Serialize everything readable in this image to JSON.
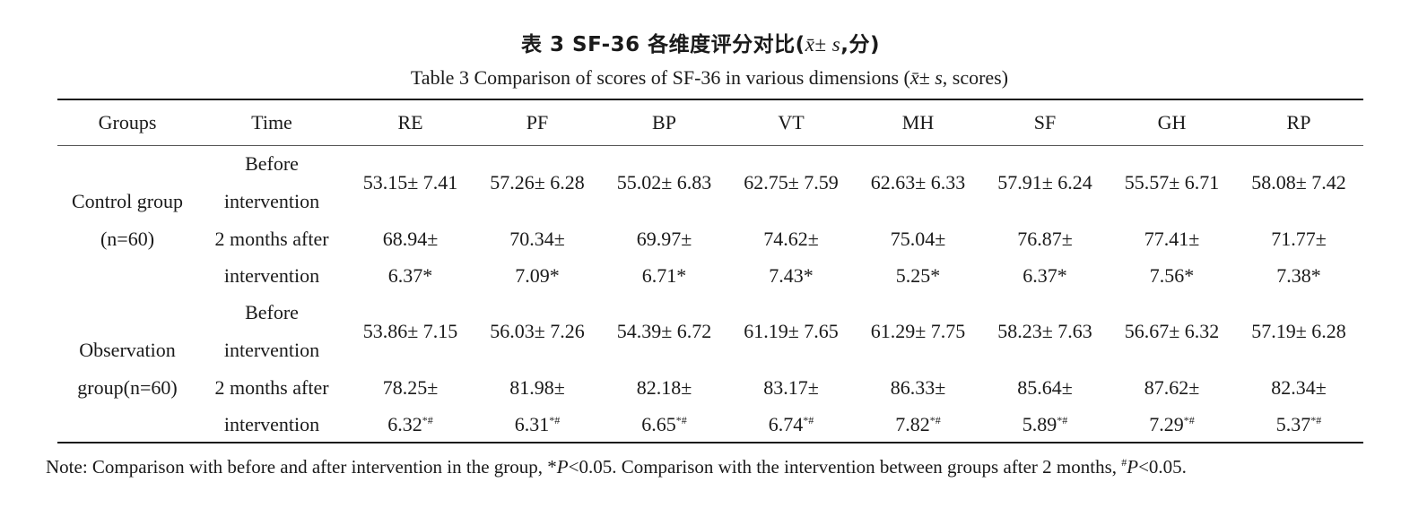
{
  "caption": {
    "cn_prefix": "表 3 SF-36 各维度评分对比(",
    "cn_symbol": "x̄± s",
    "cn_suffix": ",分)",
    "en_prefix": "Table 3  Comparison of scores of SF-36 in various dimensions (",
    "en_symbol": "x̄± s",
    "en_suffix": ", scores)"
  },
  "table": {
    "headers": [
      "Groups",
      "Time",
      "RE",
      "PF",
      "BP",
      "VT",
      "MH",
      "SF",
      "GH",
      "RP"
    ],
    "groups": [
      {
        "name_line1": "Control group",
        "name_line2": "(n=60)",
        "rows": [
          {
            "time_line1": "Before",
            "time_line2": "intervention",
            "values": [
              "53.15± 7.41",
              "57.26± 6.28",
              "55.02± 6.83",
              "62.75± 7.59",
              "62.63± 6.33",
              "57.91± 6.24",
              "55.57± 6.71",
              "58.08± 7.42"
            ]
          },
          {
            "time_line1": "2 months after",
            "time_line2": "intervention",
            "values_line1": [
              "68.94±",
              "70.34±",
              "69.97±",
              "74.62±",
              "75.04±",
              "76.87±",
              "77.41±",
              "71.77±"
            ],
            "values_line2": [
              "6.37*",
              "7.09*",
              "6.71*",
              "7.43*",
              "5.25*",
              "6.37*",
              "7.56*",
              "7.38*"
            ]
          }
        ]
      },
      {
        "name_line1": "Observation",
        "name_line2": "group(n=60)",
        "rows": [
          {
            "time_line1": "Before",
            "time_line2": "intervention",
            "values": [
              "53.86± 7.15",
              "56.03± 7.26",
              "54.39± 6.72",
              "61.19± 7.65",
              "61.29± 7.75",
              "58.23± 7.63",
              "56.67± 6.32",
              "57.19± 6.28"
            ]
          },
          {
            "time_line1": "2 months after",
            "time_line2": "intervention",
            "values_line1": [
              "78.25±",
              "81.98±",
              "82.18±",
              "83.17±",
              "86.33±",
              "85.64±",
              "87.62±",
              "82.34±"
            ],
            "values_line2": [
              "6.32",
              "6.31",
              "6.65",
              "6.74",
              "7.82",
              "5.89",
              "7.29",
              "5.37"
            ],
            "sig_mark": "*#"
          }
        ]
      }
    ]
  },
  "note": {
    "part1": "Note: Comparison with before and after intervention in the group, *",
    "p1": "P",
    "part2": "<0.05. Comparison with the intervention between groups after 2 months, ",
    "hash": "#",
    "p2": "P",
    "part3": "<0.05."
  }
}
